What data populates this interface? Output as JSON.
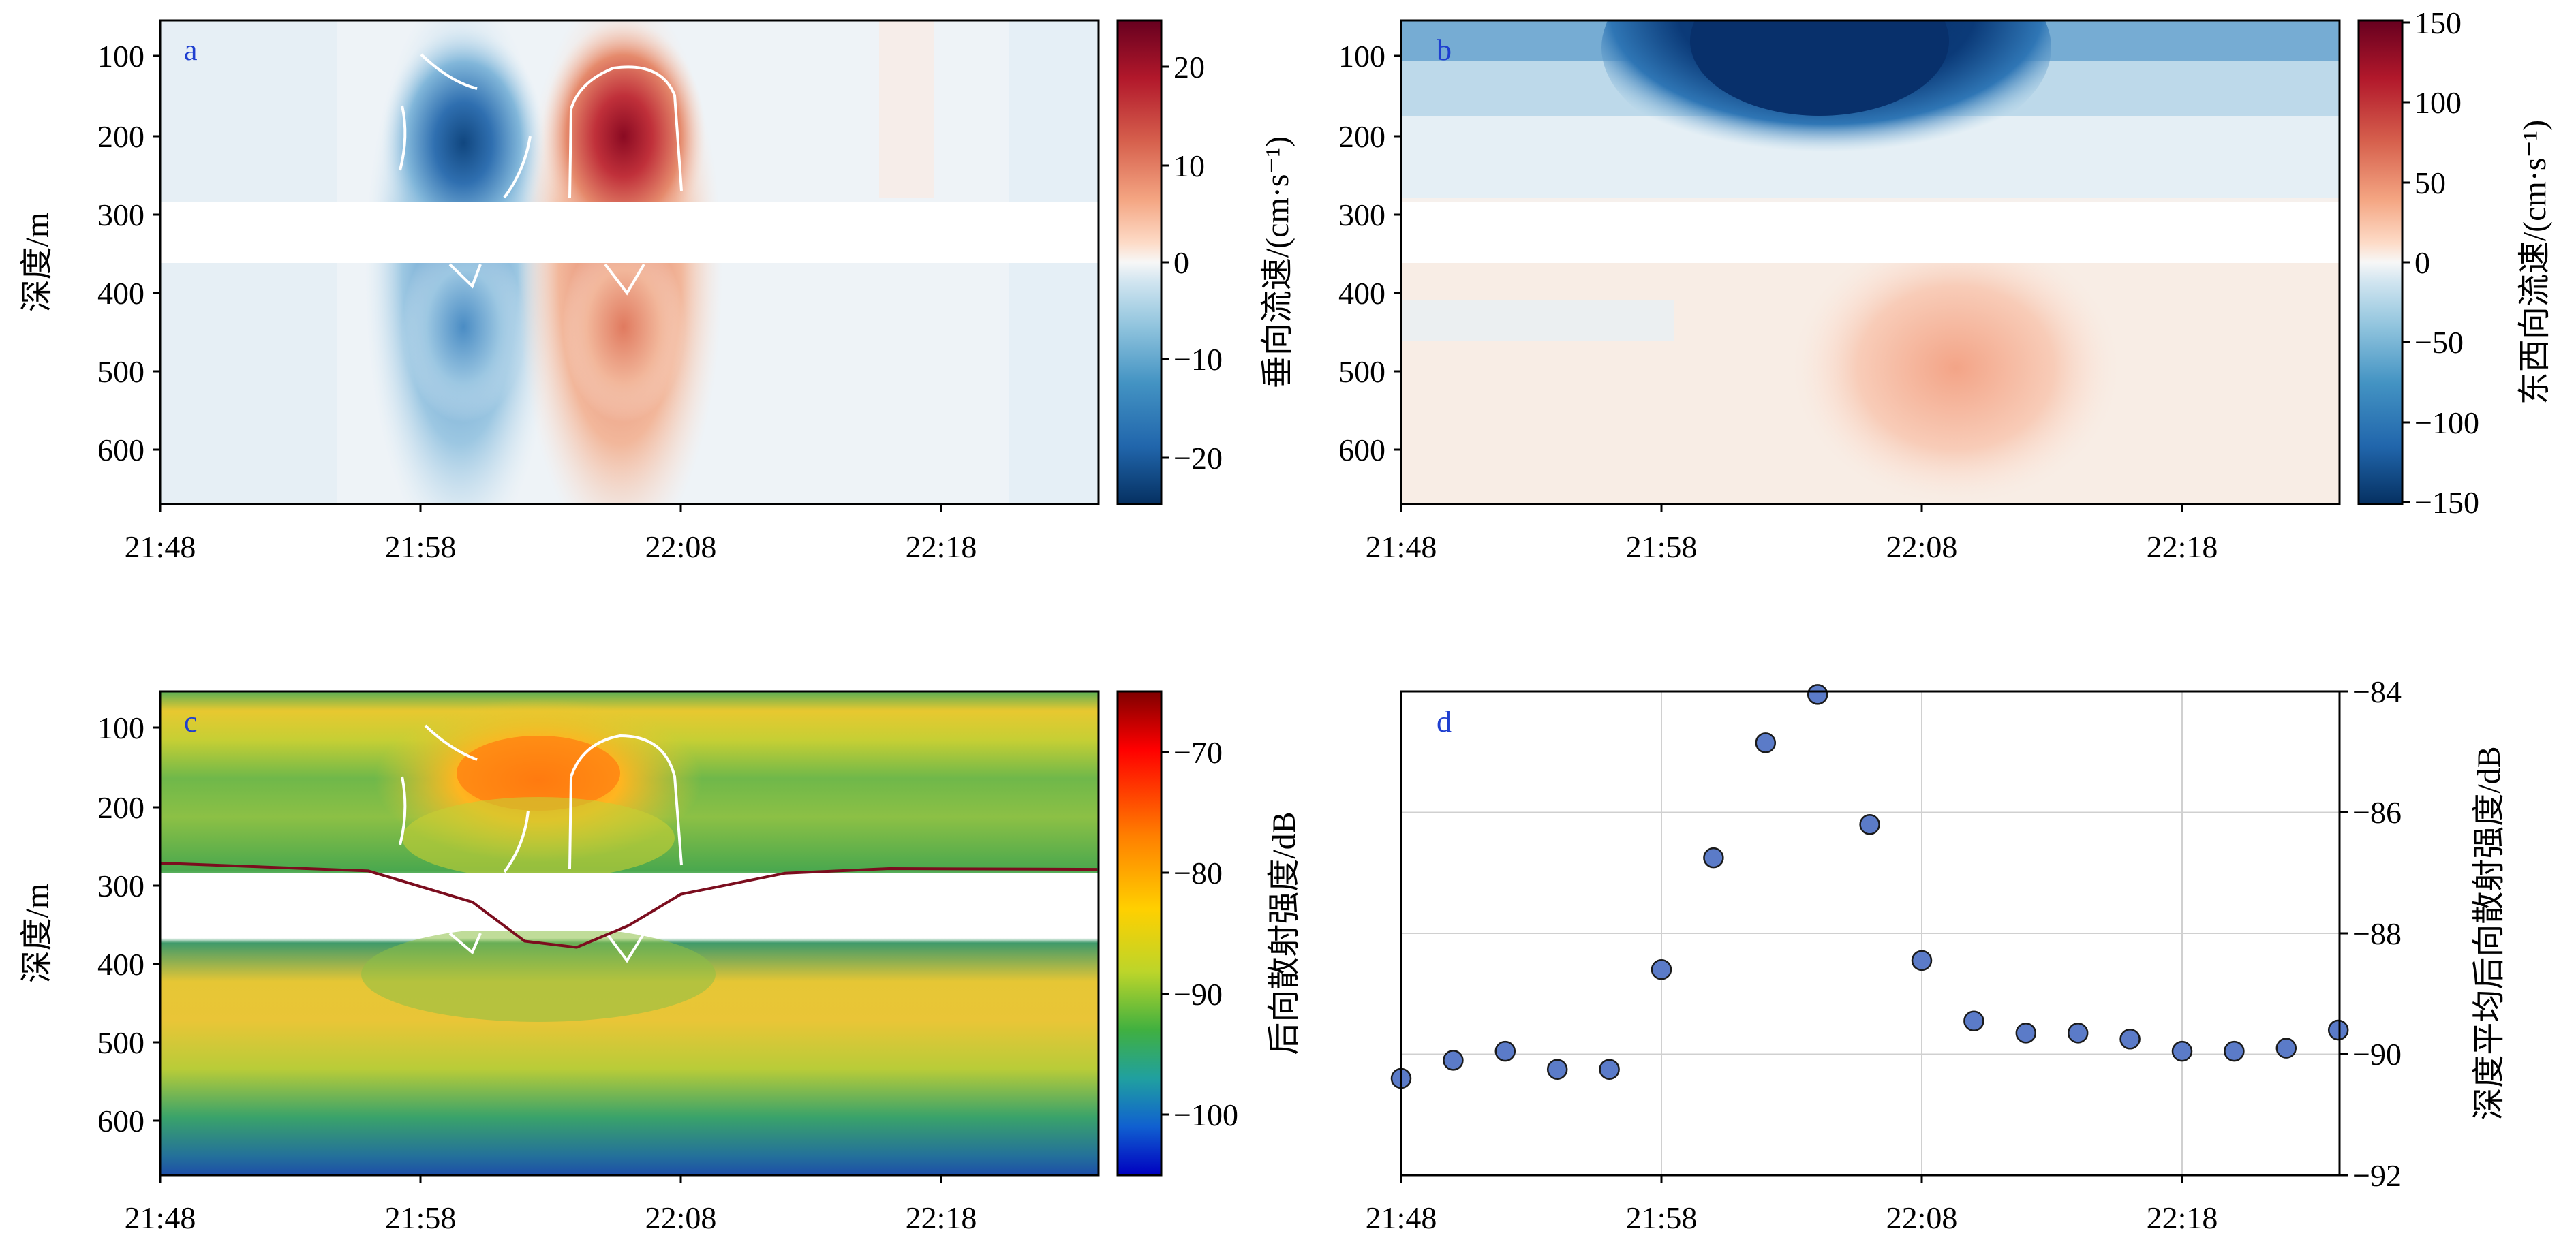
{
  "figure": {
    "x_ticks": [
      "21:48",
      "21:58",
      "22:08",
      "22:18"
    ],
    "panels": {
      "a": {
        "label": "a",
        "ylabel": "深度/m",
        "y_ticks": [
          "100",
          "200",
          "300",
          "400",
          "500",
          "600"
        ],
        "cbar_label": "垂向流速/(cm·s⁻¹)",
        "cbar_ticks": [
          "20",
          "10",
          "0",
          "−10",
          "−20"
        ]
      },
      "b": {
        "label": "b",
        "y_ticks": [
          "100",
          "200",
          "300",
          "400",
          "500",
          "600"
        ],
        "cbar_label": "东西向流速/(cm·s⁻¹)",
        "cbar_ticks": [
          "150",
          "100",
          "50",
          "0",
          "−50",
          "−100",
          "−150"
        ]
      },
      "c": {
        "label": "c",
        "ylabel": "深度/m",
        "y_ticks": [
          "100",
          "200",
          "300",
          "400",
          "500",
          "600"
        ],
        "cbar_label": "后向散射强度/dB",
        "cbar_ticks": [
          "−70",
          "−80",
          "−90",
          "−100"
        ]
      },
      "d": {
        "label": "d",
        "ylabel": "深度平均后向散射强度/dB",
        "y_ticks": [
          "−84",
          "−86",
          "−88",
          "−90",
          "−92"
        ]
      }
    }
  },
  "colors": {
    "marker_fill": "#5b7bc8",
    "curve": "#7b0d1e",
    "contour": "#ffffff",
    "label_text": "#1f3fd0"
  },
  "chart_data": [
    {
      "type": "heatmap",
      "panel": "a",
      "x_range": [
        "21:48",
        "22:24"
      ],
      "ylim": [
        670,
        50
      ],
      "no_data_depth_band": [
        280,
        360
      ],
      "colorbar_range": [
        -25,
        25
      ],
      "colormap": "RdBu_r",
      "features": [
        {
          "sign": "negative",
          "time_center": "22:00",
          "depth_range": [
            50,
            670
          ],
          "peak": -22
        },
        {
          "sign": "positive",
          "time_center": "22:05",
          "depth_range": [
            50,
            670
          ],
          "peak": 24
        }
      ]
    },
    {
      "type": "heatmap",
      "panel": "b",
      "x_range": [
        "21:48",
        "22:24"
      ],
      "ylim": [
        670,
        50
      ],
      "no_data_depth_band": [
        280,
        360
      ],
      "colorbar_range": [
        -150,
        150
      ],
      "colormap": "RdBu_r",
      "features": [
        {
          "sign": "negative",
          "time_center": "22:02",
          "depth_range": [
            50,
            170
          ],
          "peak": -150
        },
        {
          "sign": "positive",
          "time_center": "22:07",
          "depth_range": [
            400,
            670
          ],
          "peak": 30
        }
      ]
    },
    {
      "type": "heatmap",
      "panel": "c",
      "x_range": [
        "21:48",
        "22:24"
      ],
      "ylim": [
        670,
        50
      ],
      "no_data_depth_band": [
        280,
        360
      ],
      "colorbar_range": [
        -105,
        -65
      ],
      "colormap": "jet",
      "line": {
        "x": [
          "21:48",
          "21:56",
          "22:00",
          "22:02",
          "22:04",
          "22:06",
          "22:08",
          "22:12",
          "22:16",
          "22:24"
        ],
        "y": [
          270,
          280,
          320,
          370,
          378,
          350,
          310,
          283,
          277,
          278
        ]
      }
    },
    {
      "type": "scatter",
      "panel": "d",
      "ylim": [
        -92,
        -84
      ],
      "x_range": [
        "21:48",
        "22:24"
      ],
      "x": [
        "21:48",
        "21:50",
        "21:52",
        "21:54",
        "21:56",
        "21:58",
        "22:00",
        "22:02",
        "22:04",
        "22:06",
        "22:08",
        "22:10",
        "22:12",
        "22:14",
        "22:16",
        "22:18",
        "22:20",
        "22:22",
        "22:24"
      ],
      "y": [
        -90.4,
        -90.1,
        -89.95,
        -90.25,
        -90.25,
        -88.6,
        -86.75,
        -84.85,
        -84.05,
        -86.2,
        -88.45,
        -89.45,
        -89.65,
        -89.65,
        -89.75,
        -89.95,
        -89.95,
        -89.9,
        -89.6
      ]
    }
  ]
}
